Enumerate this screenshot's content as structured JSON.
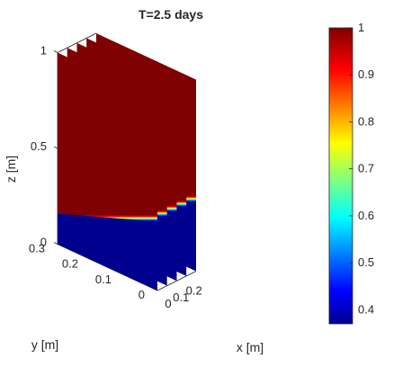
{
  "chart_data": {
    "type": "heatmap",
    "title": "T=2.5 days",
    "xlabel": "x [m]",
    "ylabel": "y [m]",
    "zlabel": "z [m]",
    "x_ticks": [
      "0",
      "0.1",
      "0.2"
    ],
    "y_ticks": [
      "0",
      "0.1",
      "0.2",
      "0.3"
    ],
    "z_ticks": [
      "0",
      "0.5",
      "1"
    ],
    "xlim": [
      0,
      0.3
    ],
    "ylim": [
      0,
      0.3
    ],
    "zlim": [
      0,
      1
    ],
    "slices_x": [
      0,
      0.075,
      0.15,
      0.225,
      0.3
    ],
    "front_plane": "y = 0",
    "interface_z_at_y0": 0.36,
    "interface_z_at_y03": 0.16,
    "value_above": 1.0,
    "value_below": 0.37,
    "colorbar": {
      "ticks": [
        "1",
        "0.9",
        "0.8",
        "0.7",
        "0.6",
        "0.5",
        "0.4"
      ],
      "min": 0.37,
      "max": 1.0,
      "colormap": "jet"
    },
    "colors": {
      "high": "#7f0000",
      "low": "#00008f"
    }
  }
}
